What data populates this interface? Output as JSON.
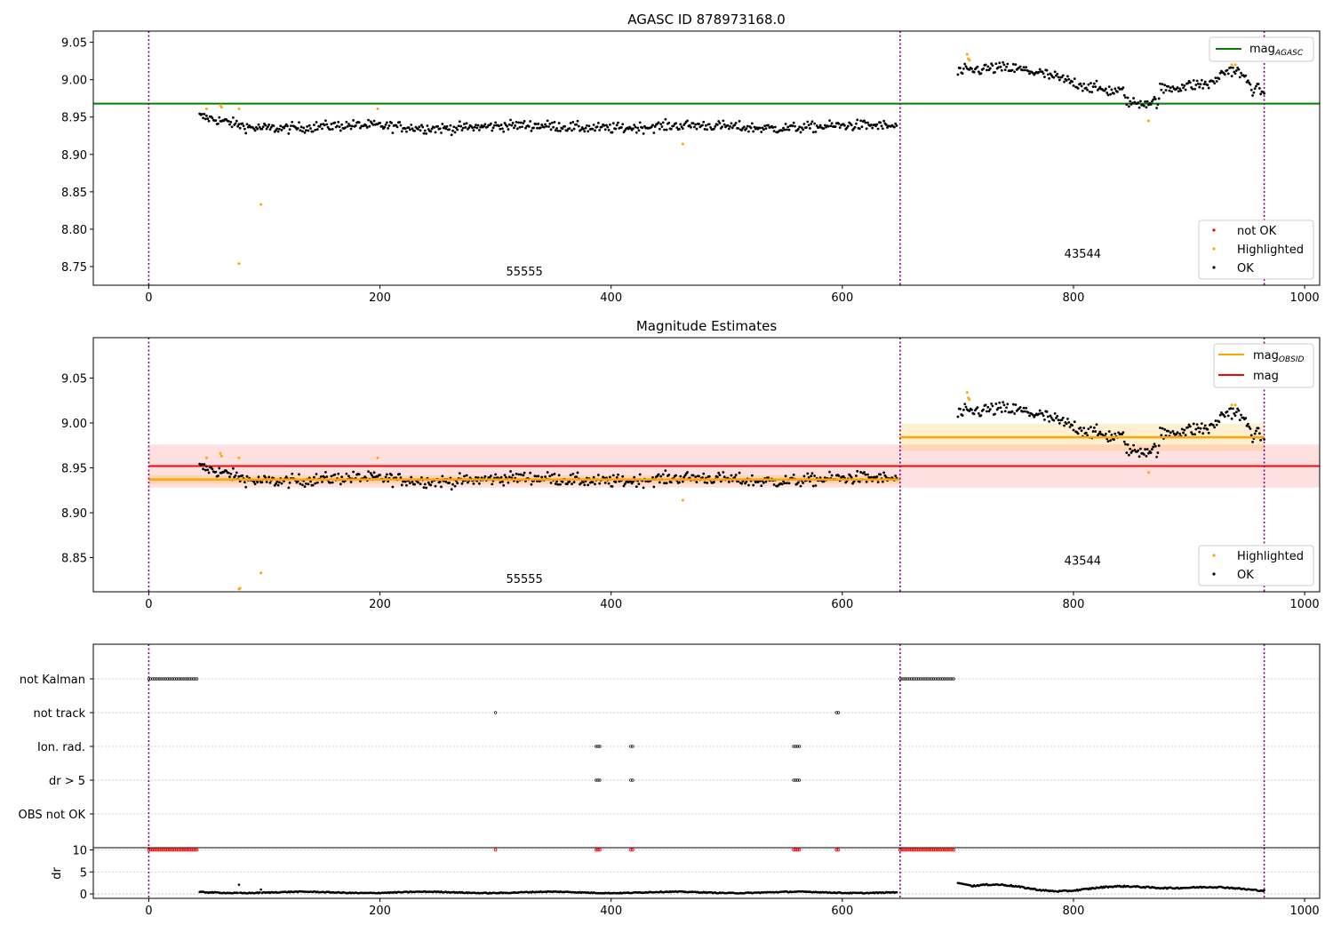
{
  "chart_data": [
    {
      "type": "scatter",
      "title": "AGASC ID 878973168.0",
      "xlim": [
        -48,
        1013
      ],
      "ylim": [
        8.725,
        9.065
      ],
      "xticks": [
        "0",
        "200",
        "400",
        "600",
        "800",
        "1000"
      ],
      "yticks": [
        "8.75",
        "8.80",
        "8.85",
        "8.90",
        "8.95",
        "9.00",
        "9.05"
      ],
      "obs_boundaries": [
        0,
        650,
        965
      ],
      "obsids": [
        {
          "label": "55555",
          "x": 325,
          "y": 8.738
        },
        {
          "label": "43544",
          "x": 808,
          "y": 8.762
        }
      ],
      "mag_agasc": 8.968,
      "legend_upper": {
        "position": "upper right",
        "entries": [
          {
            "label": "mag",
            "subscript": "AGASC",
            "color": "#008000"
          }
        ]
      },
      "legend_lower": {
        "position": "lower right",
        "entries": [
          {
            "label": "not OK",
            "color": "#ff0000"
          },
          {
            "label": "Highlighted",
            "color": "#ffa500"
          },
          {
            "label": "OK",
            "color": "#000000"
          }
        ]
      },
      "highlighted": [
        [
          50,
          8.961
        ],
        [
          62,
          8.966
        ],
        [
          63,
          8.963
        ],
        [
          78,
          8.961
        ],
        [
          97,
          8.833
        ],
        [
          78,
          8.754
        ],
        [
          198,
          8.961
        ],
        [
          462,
          8.914
        ],
        [
          708,
          9.034
        ],
        [
          709,
          9.028
        ],
        [
          710,
          9.026
        ],
        [
          865,
          8.945
        ],
        [
          937,
          9.02
        ],
        [
          940,
          9.02
        ]
      ]
    },
    {
      "type": "scatter",
      "title": "Magnitude Estimates",
      "xlim": [
        -48,
        1013
      ],
      "ylim": [
        8.812,
        9.095
      ],
      "xticks": [
        "0",
        "200",
        "400",
        "600",
        "800",
        "1000"
      ],
      "yticks": [
        "8.85",
        "8.90",
        "8.95",
        "9.00",
        "9.05"
      ],
      "obs_boundaries": [
        0,
        650,
        965
      ],
      "obsids": [
        {
          "label": "55555",
          "x": 325,
          "y": 8.822
        },
        {
          "label": "43544",
          "x": 808,
          "y": 8.842
        }
      ],
      "mag": 8.952,
      "mag_band": [
        8.928,
        8.976
      ],
      "mag_obsid": [
        {
          "x0": 0,
          "x1": 650,
          "y": 8.937,
          "band": [
            8.932,
            8.942
          ]
        },
        {
          "x0": 650,
          "x1": 965,
          "y": 8.984,
          "band": [
            8.969,
            8.999
          ]
        }
      ],
      "legend_upper": {
        "position": "upper right",
        "entries": [
          {
            "label": "mag",
            "subscript": "OBSID",
            "color": "#ffa500"
          },
          {
            "label": "mag",
            "subscript": "",
            "color": "#ff0000"
          }
        ]
      },
      "legend_lower": {
        "position": "lower right",
        "entries": [
          {
            "label": "Highlighted",
            "color": "#ffa500"
          },
          {
            "label": "OK",
            "color": "#000000"
          }
        ]
      },
      "highlighted": [
        [
          50,
          8.961
        ],
        [
          62,
          8.966
        ],
        [
          63,
          8.963
        ],
        [
          78,
          8.961
        ],
        [
          97,
          8.833
        ],
        [
          78,
          8.815
        ],
        [
          79,
          8.816
        ],
        [
          198,
          8.961
        ],
        [
          462,
          8.914
        ],
        [
          708,
          9.034
        ],
        [
          709,
          9.028
        ],
        [
          710,
          9.026
        ],
        [
          865,
          8.945
        ],
        [
          937,
          9.02
        ],
        [
          940,
          9.02
        ]
      ]
    },
    {
      "type": "scatter",
      "title": "",
      "xlim": [
        -48,
        1013
      ],
      "categories": [
        "not Kalman",
        "not track",
        "Ion. rad.",
        "dr > 5",
        "OBS not OK"
      ],
      "flag_ranges": {
        "not Kalman": [
          [
            0,
            42
          ],
          [
            650,
            698
          ]
        ],
        "not track": [
          [
            300,
            300
          ],
          [
            595,
            598
          ]
        ],
        "Ion. rad.": [
          [
            387,
            391
          ],
          [
            417,
            420
          ],
          [
            558,
            563
          ]
        ],
        "dr > 5": [
          [
            387,
            391
          ],
          [
            417,
            420
          ],
          [
            558,
            563
          ]
        ],
        "OBS not OK": []
      }
    },
    {
      "type": "scatter",
      "title": "",
      "ylabel": "dr",
      "xlim": [
        -48,
        1013
      ],
      "ylim": [
        -1,
        10.5
      ],
      "xticks": [
        "0",
        "200",
        "400",
        "600",
        "800",
        "1000"
      ],
      "yticks": [
        "0",
        "5",
        "10"
      ],
      "capped_at_10": [
        [
          0,
          42
        ],
        [
          300,
          300
        ],
        [
          387,
          391
        ],
        [
          417,
          420
        ],
        [
          558,
          563
        ],
        [
          595,
          598
        ],
        [
          650,
          698
        ]
      ]
    }
  ]
}
